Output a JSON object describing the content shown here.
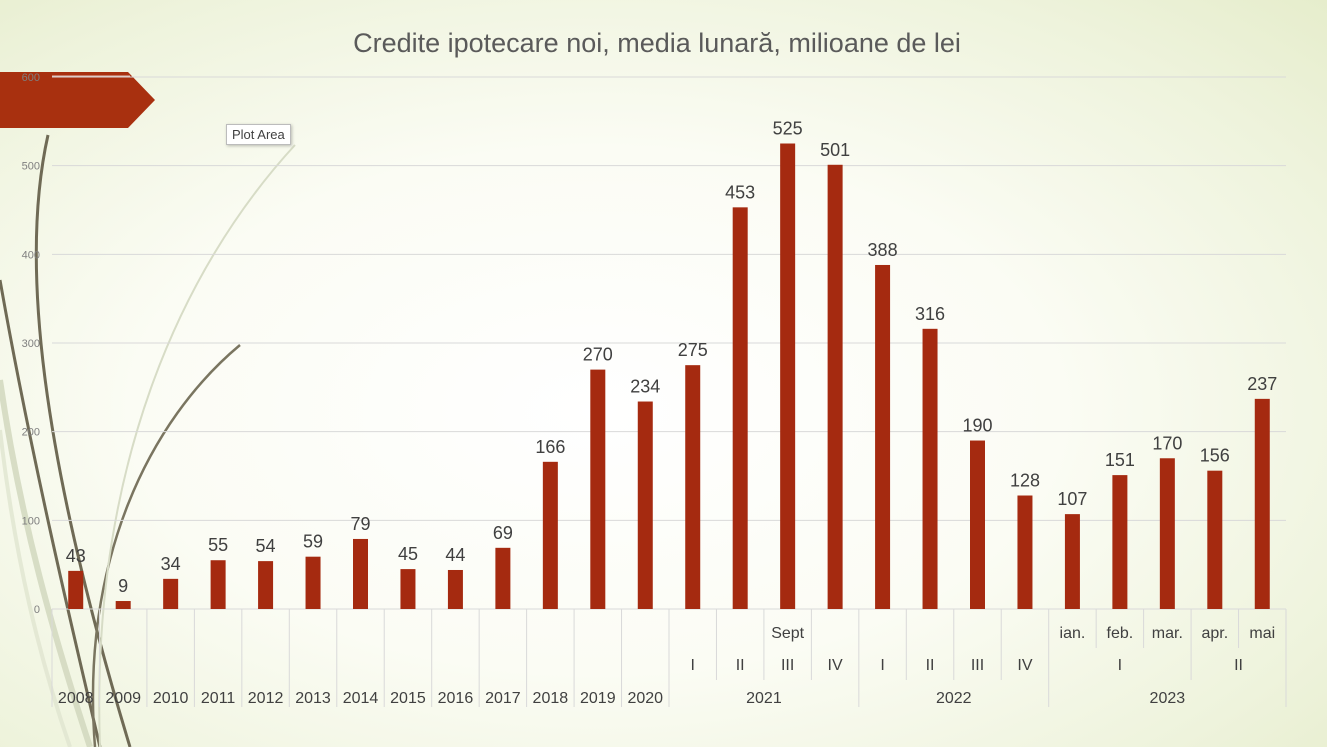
{
  "chart_data": {
    "type": "bar",
    "title": "Credite ipotecare noi, media lunară, milioane de lei",
    "xlabel": "",
    "ylabel": "",
    "ylim": [
      0,
      600
    ],
    "y_ticks": [
      "0",
      "100",
      "200",
      "300",
      "400",
      "500",
      "600"
    ],
    "grid": true,
    "legend": "none",
    "bar_color": "#a52a10",
    "categories": [
      "2008",
      "2009",
      "2010",
      "2011",
      "2012",
      "2013",
      "2014",
      "2015",
      "2016",
      "2017",
      "2018",
      "2019",
      "2020",
      "2021 I",
      "2021 II",
      "2021 III Sept",
      "2021 IV",
      "2022 I",
      "2022 II",
      "2022 III",
      "2022 IV",
      "2023 I ian.",
      "2023 I feb.",
      "2023 I mar.",
      "2023 II apr.",
      "2023 II mai"
    ],
    "values": [
      43,
      9,
      34,
      55,
      54,
      59,
      79,
      45,
      44,
      69,
      166,
      270,
      234,
      275,
      453,
      525,
      501,
      388,
      316,
      190,
      128,
      107,
      151,
      170,
      156,
      237
    ],
    "axis_levels": {
      "level1": [
        "",
        "",
        "",
        "",
        "",
        "",
        "",
        "",
        "",
        "",
        "",
        "",
        "",
        "",
        "",
        "Sept",
        "",
        "",
        "",
        "",
        "",
        "ian.",
        "feb.",
        "mar.",
        "apr.",
        "mai"
      ],
      "level2": [
        {
          "label": "I",
          "span": [
            13,
            13
          ]
        },
        {
          "label": "II",
          "span": [
            14,
            14
          ]
        },
        {
          "label": "III",
          "span": [
            15,
            15
          ]
        },
        {
          "label": "IV",
          "span": [
            16,
            16
          ]
        },
        {
          "label": "I",
          "span": [
            17,
            17
          ]
        },
        {
          "label": "II",
          "span": [
            18,
            18
          ]
        },
        {
          "label": "III",
          "span": [
            19,
            19
          ]
        },
        {
          "label": "IV",
          "span": [
            20,
            20
          ]
        },
        {
          "label": "I",
          "span": [
            21,
            23
          ]
        },
        {
          "label": "II",
          "span": [
            24,
            25
          ]
        }
      ],
      "level3": [
        {
          "label": "2008",
          "span": [
            0,
            0
          ]
        },
        {
          "label": "2009",
          "span": [
            1,
            1
          ]
        },
        {
          "label": "2010",
          "span": [
            2,
            2
          ]
        },
        {
          "label": "2011",
          "span": [
            3,
            3
          ]
        },
        {
          "label": "2012",
          "span": [
            4,
            4
          ]
        },
        {
          "label": "2013",
          "span": [
            5,
            5
          ]
        },
        {
          "label": "2014",
          "span": [
            6,
            6
          ]
        },
        {
          "label": "2015",
          "span": [
            7,
            7
          ]
        },
        {
          "label": "2016",
          "span": [
            8,
            8
          ]
        },
        {
          "label": "2017",
          "span": [
            9,
            9
          ]
        },
        {
          "label": "2018",
          "span": [
            10,
            10
          ]
        },
        {
          "label": "2019",
          "span": [
            11,
            11
          ]
        },
        {
          "label": "2020",
          "span": [
            12,
            12
          ]
        },
        {
          "label": "2021",
          "span": [
            13,
            16
          ]
        },
        {
          "label": "2022",
          "span": [
            17,
            20
          ]
        },
        {
          "label": "2023",
          "span": [
            21,
            25
          ]
        }
      ]
    }
  },
  "tooltip": "Plot Area"
}
